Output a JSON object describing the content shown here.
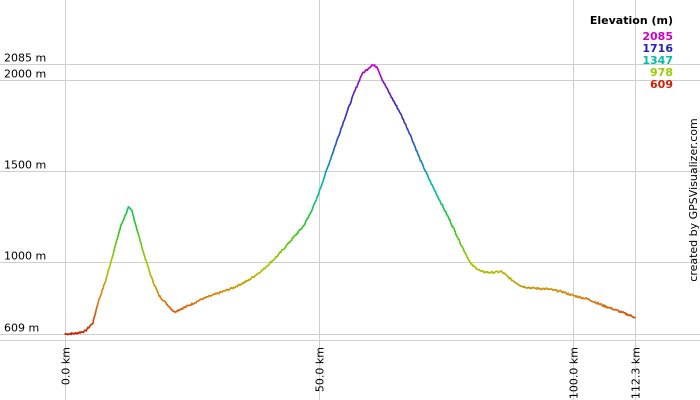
{
  "chart_data": {
    "type": "line",
    "title": "",
    "xlabel": "",
    "ylabel": "",
    "xlim": [
      0,
      112.3
    ],
    "ylim": [
      609,
      2085
    ],
    "x_ticks": [
      {
        "value": 0,
        "label": "0.0 km"
      },
      {
        "value": 50,
        "label": "50.0 km"
      },
      {
        "value": 100,
        "label": "100.0 km"
      },
      {
        "value": 112.3,
        "label": "112.3 km"
      }
    ],
    "y_ticks": [
      {
        "value": 609,
        "label": "609 m"
      },
      {
        "value": 1000,
        "label": "1000 m"
      },
      {
        "value": 1500,
        "label": "1500 m"
      },
      {
        "value": 2000,
        "label": "2000 m"
      },
      {
        "value": 2085,
        "label": "2085 m"
      }
    ],
    "grid": true,
    "legend": {
      "position": "top-right",
      "title": "Elevation (m)",
      "entries": [
        {
          "label": "2085",
          "color": "#cc00cc"
        },
        {
          "label": "1716",
          "color": "#2222bb"
        },
        {
          "label": "1347",
          "color": "#00bbaa"
        },
        {
          "label": "978",
          "color": "#99cc00"
        },
        {
          "label": "609",
          "color": "#cc2200"
        }
      ]
    },
    "credit": "created by GPSVisualizer.com",
    "series": [
      {
        "x": [
          0,
          2,
          4,
          5.5,
          6.5,
          8,
          9.5,
          11,
          12.5,
          13.2,
          14,
          15.5,
          17,
          18.5,
          21.5,
          24,
          27,
          30,
          33,
          36,
          39,
          42,
          44.5,
          47,
          48,
          49.5,
          51,
          53,
          55,
          57,
          58.5,
          59.5,
          60.5,
          61.5,
          62.5,
          64,
          66,
          68,
          70,
          72,
          74,
          76,
          78,
          80,
          82,
          84,
          86,
          88,
          90,
          92,
          95,
          98,
          100,
          103,
          106,
          109,
          112.3
        ],
        "y": [
          609,
          612,
          625,
          670,
          780,
          900,
          1050,
          1200,
          1300,
          1280,
          1200,
          1050,
          920,
          820,
          730,
          760,
          800,
          830,
          860,
          900,
          960,
          1040,
          1120,
          1200,
          1250,
          1340,
          1460,
          1620,
          1780,
          1930,
          2030,
          2055,
          2080,
          2070,
          2000,
          1920,
          1820,
          1700,
          1560,
          1440,
          1330,
          1220,
          1100,
          990,
          950,
          945,
          950,
          905,
          870,
          860,
          855,
          840,
          820,
          800,
          765,
          735,
          700
        ]
      }
    ]
  }
}
